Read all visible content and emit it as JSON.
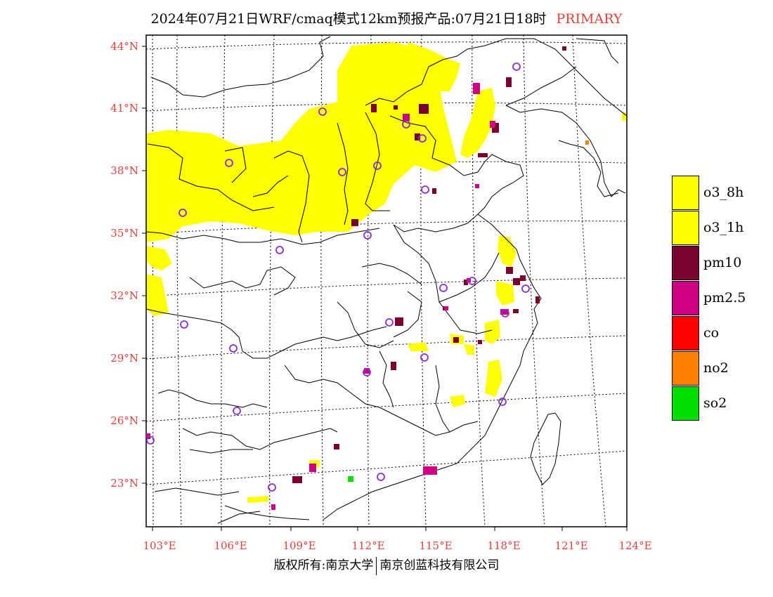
{
  "header": {
    "title": "2024年07月21日WRF/cmaq模式12km预报产品:07月21日18时",
    "tag": "PRIMARY"
  },
  "map": {
    "lat_labels": [
      "44°N",
      "41°N",
      "38°N",
      "35°N",
      "32°N",
      "29°N",
      "26°N",
      "23°N"
    ],
    "lon_labels": [
      "103°E",
      "106°E",
      "109°E",
      "112°E",
      "115°E",
      "118°E",
      "121°E",
      "124°E"
    ],
    "colors": {
      "o3_8h": "#ffff00",
      "o3_1h": "#ffff00",
      "pm10": "#7a0030",
      "pm25": "#cc0080",
      "co": "#ff0000",
      "no2": "#ff7f00",
      "so2": "#00e000",
      "station": "#8a2be2",
      "axis_text": "#e8403a"
    }
  },
  "legend": [
    {
      "label": "o3_8h",
      "color": "#ffff00"
    },
    {
      "label": "o3_1h",
      "color": "#ffff00"
    },
    {
      "label": "pm10",
      "color": "#7a0030"
    },
    {
      "label": "pm2.5",
      "color": "#cc0080"
    },
    {
      "label": "co",
      "color": "#ff0000"
    },
    {
      "label": "no2",
      "color": "#ff7f00"
    },
    {
      "label": "so2",
      "color": "#00e000"
    }
  ],
  "footer": {
    "left": "版权所有:南京大学",
    "right": "南京创蓝科技有限公司"
  }
}
